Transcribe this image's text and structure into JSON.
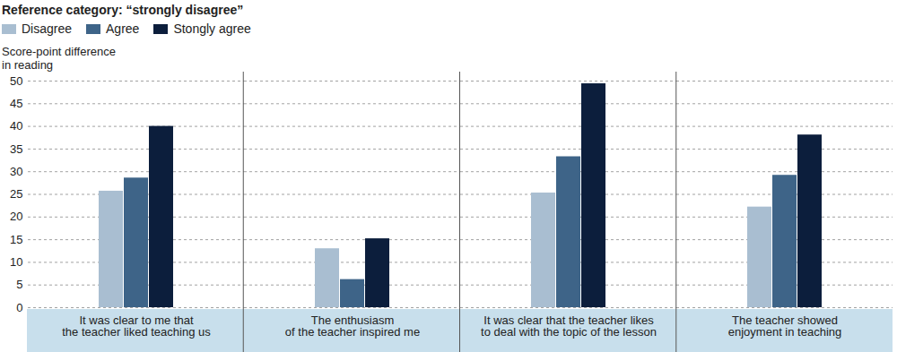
{
  "chart_data": {
    "type": "bar",
    "title": "Reference category: “strongly disagree”",
    "y_label": "Score-point difference\nin reading",
    "categories": [
      "It was clear to me that\nthe teacher liked teaching us",
      "The enthusiasm\nof the teacher inspired me",
      "It was clear that the teacher likes\nto deal with the topic of the lesson",
      "The teacher showed\nenjoyment in teaching"
    ],
    "series": [
      {
        "name": "Disagree",
        "color": "#a9bed1",
        "values": [
          25.7,
          13.0,
          25.3,
          22.2
        ]
      },
      {
        "name": "Agree",
        "color": "#3e6488",
        "values": [
          28.6,
          6.2,
          33.3,
          29.2
        ]
      },
      {
        "name": "Stongly agree",
        "color": "#0c1e3c",
        "values": [
          40,
          15.2,
          49.4,
          38.1
        ]
      }
    ],
    "ylim": [
      0,
      50
    ],
    "yticks": [
      0,
      5,
      10,
      15,
      20,
      25,
      30,
      35,
      40,
      45,
      50
    ],
    "grid": true,
    "legend": "top-left"
  }
}
